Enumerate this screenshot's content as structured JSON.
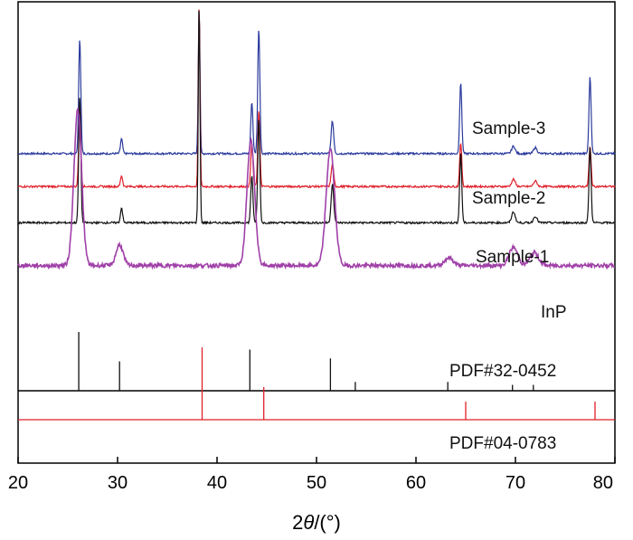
{
  "chart_data": {
    "type": "line",
    "title": "",
    "xlabel_prefix": "2",
    "xlabel_theta": "θ",
    "xlabel_suffix": "/(°)",
    "ylabel": "",
    "xlim": [
      20,
      80
    ],
    "xticks": [
      20,
      30,
      40,
      50,
      60,
      70,
      80
    ],
    "series": [
      {
        "name": "Sample-3",
        "color": "#2a3a9c",
        "baseline": 0.55,
        "peaks": [
          [
            26.2,
            0.78,
            0.15
          ],
          [
            30.4,
            0.1,
            0.15
          ],
          [
            38.2,
            1.0,
            0.12
          ],
          [
            43.5,
            0.35,
            0.15
          ],
          [
            44.2,
            0.85,
            0.15
          ],
          [
            51.6,
            0.22,
            0.18
          ],
          [
            64.5,
            0.48,
            0.15
          ],
          [
            69.8,
            0.05,
            0.25
          ],
          [
            72.0,
            0.04,
            0.25
          ],
          [
            77.5,
            0.52,
            0.15
          ]
        ]
      },
      {
        "name": "Sample-2",
        "color": "#e0202a",
        "baseline": 0.45,
        "peaks": [
          [
            26.2,
            0.45,
            0.15
          ],
          [
            30.4,
            0.06,
            0.15
          ],
          [
            38.2,
            1.0,
            0.12
          ],
          [
            43.5,
            0.24,
            0.15
          ],
          [
            44.2,
            0.42,
            0.15
          ],
          [
            51.6,
            0.12,
            0.18
          ],
          [
            64.5,
            0.24,
            0.15
          ],
          [
            69.8,
            0.04,
            0.25
          ],
          [
            72.0,
            0.03,
            0.25
          ],
          [
            77.5,
            0.22,
            0.15
          ]
        ]
      },
      {
        "name": "Sample-1",
        "color": "#111111",
        "baseline": 0.34,
        "peaks": [
          [
            26.2,
            0.58,
            0.15
          ],
          [
            30.4,
            0.07,
            0.15
          ],
          [
            38.2,
            1.0,
            0.12
          ],
          [
            43.5,
            0.22,
            0.15
          ],
          [
            44.2,
            0.48,
            0.15
          ],
          [
            51.6,
            0.18,
            0.18
          ],
          [
            64.5,
            0.32,
            0.15
          ],
          [
            69.8,
            0.05,
            0.25
          ],
          [
            72.0,
            0.03,
            0.25
          ],
          [
            77.5,
            0.35,
            0.15
          ]
        ]
      },
      {
        "name": "InP",
        "color": "#a040a8",
        "baseline": 0.21,
        "peaks": [
          [
            26.0,
            0.6,
            0.55
          ],
          [
            30.2,
            0.08,
            0.5
          ],
          [
            43.4,
            0.48,
            0.55
          ],
          [
            51.4,
            0.45,
            0.6
          ],
          [
            63.3,
            0.03,
            0.6
          ],
          [
            69.8,
            0.07,
            0.6
          ],
          [
            71.9,
            0.05,
            0.6
          ]
        ]
      }
    ],
    "references": [
      {
        "name": "PDF#32-0452",
        "color": "#111111",
        "positions": [
          26.1,
          30.2,
          43.3,
          51.4,
          53.9,
          63.2,
          69.7,
          71.8
        ],
        "heights": [
          1.0,
          0.5,
          0.7,
          0.55,
          0.15,
          0.15,
          0.1,
          0.1
        ]
      },
      {
        "name": "PDF#04-0783",
        "color": "#e0202a",
        "positions": [
          38.5,
          44.7,
          65.0,
          78.0
        ],
        "heights": [
          1.0,
          0.45,
          0.25,
          0.25
        ]
      }
    ]
  }
}
